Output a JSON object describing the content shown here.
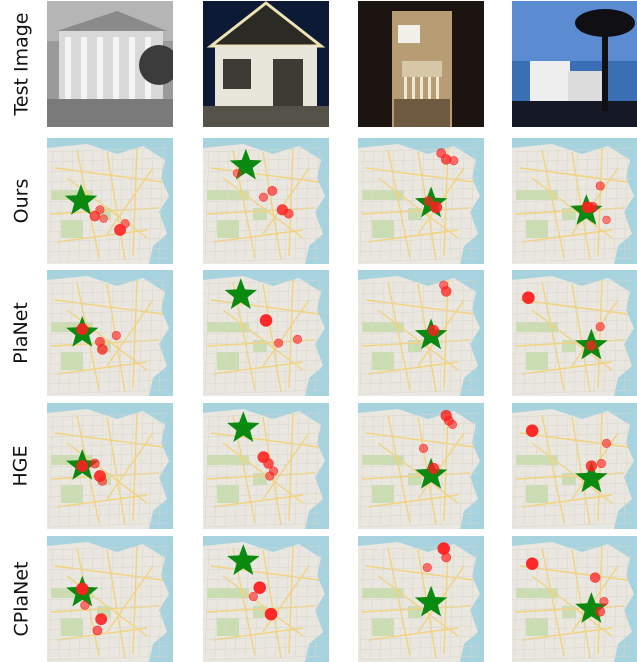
{
  "row_labels": [
    "Test Image",
    "Ours",
    "PlaNet",
    "HGE",
    "CPlaNet"
  ],
  "colors": {
    "water": "#a7d3df",
    "land": "#e9e7df",
    "park": "#c9ddb0",
    "road": "#f3d27a",
    "prediction": "#ff1f1f",
    "ground_truth_star": "#0a8a10"
  },
  "test_images": [
    {
      "name": "test-image-neoclassical-building-bw",
      "palette": [
        "#7a7a7a",
        "#d9d9d9",
        "#3c3c3c"
      ]
    },
    {
      "name": "test-image-house-with-string-lights",
      "palette": [
        "#0d1a35",
        "#efe2b4",
        "#3d3b33"
      ]
    },
    {
      "name": "test-image-porch-at-night",
      "palette": [
        "#1b1410",
        "#b79c74",
        "#f1f1ea"
      ]
    },
    {
      "name": "test-image-palm-tree-house",
      "palette": [
        "#3b6fb5",
        "#eeeeee",
        "#0f0f14"
      ]
    }
  ],
  "maps": [
    {
      "method": "Ours",
      "cells": [
        {
          "star": [
            0.27,
            0.5
          ],
          "preds": [
            [
              0.38,
              0.62,
              0.7
            ],
            [
              0.42,
              0.57,
              0.5
            ],
            [
              0.58,
              0.73,
              0.9
            ],
            [
              0.45,
              0.64,
              0.4
            ],
            [
              0.62,
              0.68,
              0.5
            ]
          ]
        },
        {
          "star": [
            0.34,
            0.22
          ],
          "preds": [
            [
              0.55,
              0.42,
              0.6
            ],
            [
              0.63,
              0.57,
              0.8
            ],
            [
              0.68,
              0.6,
              0.6
            ],
            [
              0.48,
              0.47,
              0.5
            ],
            [
              0.27,
              0.28,
              0.4
            ]
          ]
        },
        {
          "star": [
            0.58,
            0.52
          ],
          "preds": [
            [
              0.7,
              0.17,
              0.7
            ],
            [
              0.66,
              0.12,
              0.6
            ],
            [
              0.76,
              0.18,
              0.5
            ],
            [
              0.62,
              0.55,
              0.9
            ],
            [
              0.56,
              0.5,
              0.6
            ]
          ]
        },
        {
          "star": [
            0.59,
            0.58
          ],
          "preds": [
            [
              0.6,
              0.55,
              0.9
            ],
            [
              0.64,
              0.55,
              0.7
            ],
            [
              0.7,
              0.38,
              0.5
            ],
            [
              0.75,
              0.65,
              0.4
            ]
          ]
        }
      ]
    },
    {
      "method": "PlaNet",
      "cells": [
        {
          "star": [
            0.28,
            0.5
          ],
          "preds": [
            [
              0.28,
              0.47,
              0.9
            ],
            [
              0.42,
              0.57,
              0.6
            ],
            [
              0.44,
              0.63,
              0.7
            ],
            [
              0.55,
              0.52,
              0.5
            ]
          ]
        },
        {
          "star": [
            0.3,
            0.2
          ],
          "preds": [
            [
              0.5,
              0.4,
              1.0
            ],
            [
              0.75,
              0.55,
              0.5
            ],
            [
              0.6,
              0.58,
              0.5
            ]
          ]
        },
        {
          "star": [
            0.58,
            0.52
          ],
          "preds": [
            [
              0.7,
              0.17,
              0.7
            ],
            [
              0.68,
              0.12,
              0.5
            ],
            [
              0.6,
              0.48,
              0.8
            ]
          ]
        },
        {
          "star": [
            0.63,
            0.6
          ],
          "preds": [
            [
              0.13,
              0.22,
              1.0
            ],
            [
              0.7,
              0.45,
              0.5
            ],
            [
              0.63,
              0.6,
              0.7
            ]
          ]
        }
      ]
    },
    {
      "method": "HGE",
      "cells": [
        {
          "star": [
            0.28,
            0.5
          ],
          "preds": [
            [
              0.28,
              0.5,
              0.9
            ],
            [
              0.42,
              0.58,
              0.9
            ],
            [
              0.38,
              0.48,
              0.6
            ],
            [
              0.44,
              0.62,
              0.5
            ]
          ]
        },
        {
          "star": [
            0.32,
            0.2
          ],
          "preds": [
            [
              0.48,
              0.43,
              0.9
            ],
            [
              0.52,
              0.48,
              0.7
            ],
            [
              0.56,
              0.54,
              0.5
            ],
            [
              0.53,
              0.58,
              0.5
            ]
          ]
        },
        {
          "star": [
            0.58,
            0.57
          ],
          "preds": [
            [
              0.7,
              0.1,
              0.8
            ],
            [
              0.72,
              0.14,
              0.6
            ],
            [
              0.6,
              0.52,
              0.8
            ],
            [
              0.52,
              0.36,
              0.5
            ],
            [
              0.75,
              0.17,
              0.5
            ]
          ]
        },
        {
          "star": [
            0.63,
            0.6
          ],
          "preds": [
            [
              0.16,
              0.22,
              1.0
            ],
            [
              0.63,
              0.5,
              0.8
            ],
            [
              0.75,
              0.32,
              0.5
            ],
            [
              0.71,
              0.48,
              0.5
            ]
          ]
        }
      ]
    },
    {
      "method": "CPlaNet",
      "cells": [
        {
          "star": [
            0.28,
            0.45
          ],
          "preds": [
            [
              0.28,
              0.42,
              1.0
            ],
            [
              0.43,
              0.66,
              0.9
            ],
            [
              0.4,
              0.75,
              0.6
            ],
            [
              0.3,
              0.55,
              0.5
            ]
          ]
        },
        {
          "star": [
            0.32,
            0.2
          ],
          "preds": [
            [
              0.45,
              0.41,
              1.0
            ],
            [
              0.54,
              0.62,
              1.0
            ],
            [
              0.4,
              0.48,
              0.5
            ]
          ]
        },
        {
          "star": [
            0.58,
            0.53
          ],
          "preds": [
            [
              0.68,
              0.1,
              1.0
            ],
            [
              0.7,
              0.17,
              0.6
            ],
            [
              0.55,
              0.25,
              0.5
            ]
          ]
        },
        {
          "star": [
            0.63,
            0.58
          ],
          "preds": [
            [
              0.16,
              0.22,
              1.0
            ],
            [
              0.66,
              0.33,
              0.7
            ],
            [
              0.73,
              0.52,
              0.5
            ],
            [
              0.7,
              0.6,
              0.6
            ]
          ]
        }
      ]
    }
  ]
}
